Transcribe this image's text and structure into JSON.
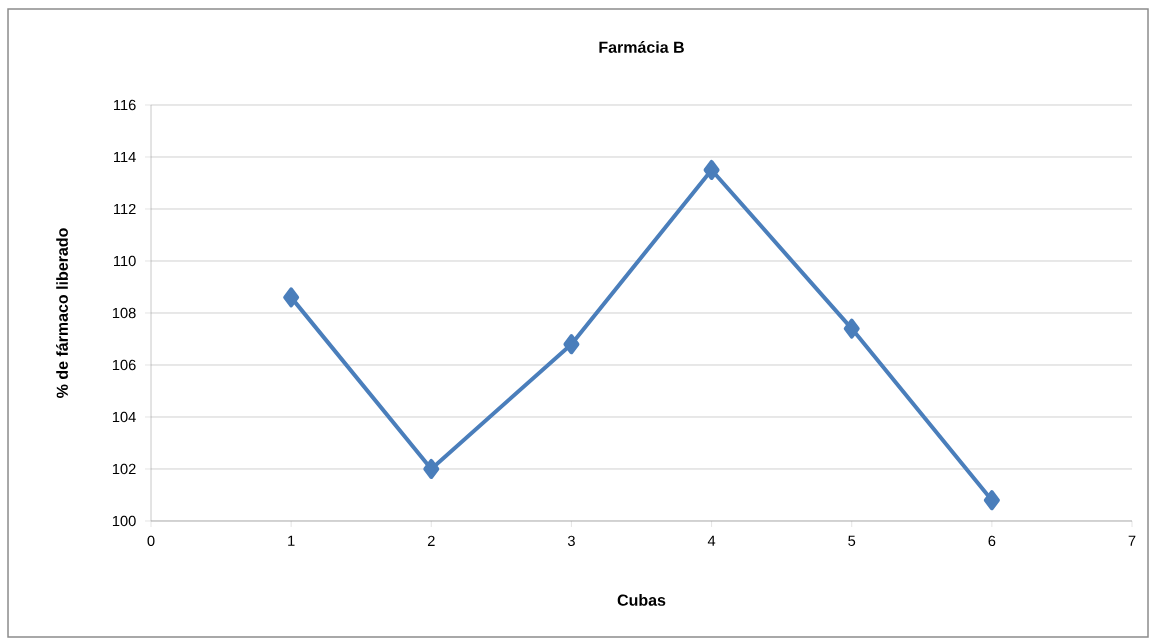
{
  "chart_data": {
    "type": "line",
    "title": "Farmácia B",
    "xlabel": "Cubas",
    "ylabel": "% de fármaco liberado",
    "x": [
      1,
      2,
      3,
      4,
      5,
      6
    ],
    "series": [
      {
        "color": "#4a7ebb",
        "values": [
          108.6,
          102.0,
          106.8,
          113.5,
          107.4,
          100.8
        ]
      }
    ],
    "xlim": [
      0,
      7
    ],
    "xticks": [
      0,
      1,
      2,
      3,
      4,
      5,
      6,
      7
    ],
    "ylim": [
      100,
      116
    ],
    "yticks": [
      100,
      102,
      104,
      106,
      108,
      110,
      112,
      114,
      116
    ],
    "grid": "y",
    "legend": false,
    "marker": "diamond",
    "line_style": "solid"
  }
}
